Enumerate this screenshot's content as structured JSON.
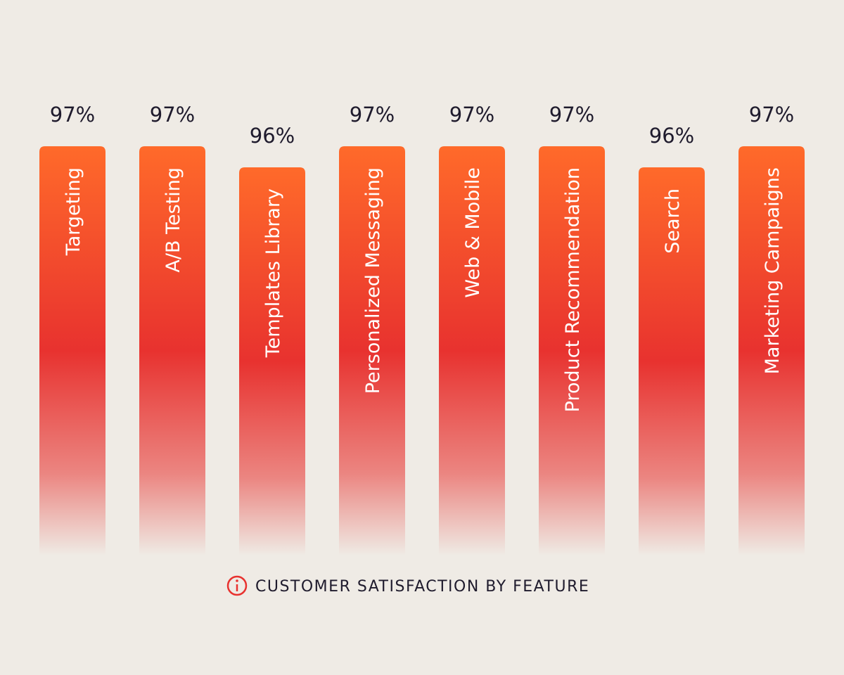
{
  "chart_data": {
    "type": "bar",
    "title": "CUSTOMER SATISFACTION BY FEATURE",
    "categories": [
      "Targeting",
      "A/B Testing",
      "Templates Library",
      "Personalized Messaging",
      "Web & Mobile",
      "Product Recommendation",
      "Search",
      "Marketing Campaigns"
    ],
    "values": [
      97,
      97,
      96,
      97,
      97,
      97,
      96,
      97
    ],
    "value_labels": [
      "97%",
      "97%",
      "96%",
      "97%",
      "97%",
      "97%",
      "96%",
      "97%"
    ],
    "color": "#e8322f"
  }
}
